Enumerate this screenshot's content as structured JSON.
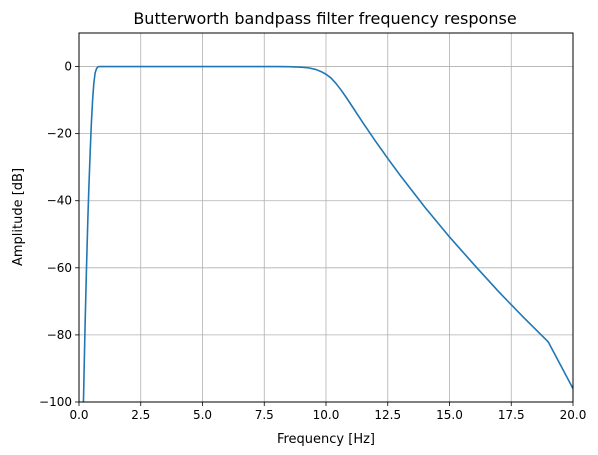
{
  "chart_data": {
    "type": "line",
    "title": "Butterworth bandpass filter frequency response",
    "xlabel": "Frequency [Hz]",
    "ylabel": "Amplitude [dB]",
    "xlim": [
      0,
      20
    ],
    "ylim": [
      -100,
      10
    ],
    "x_ticks": [
      0,
      2.5,
      5,
      7.5,
      10,
      12.5,
      15,
      17.5,
      20
    ],
    "x_tick_labels": [
      "0.0",
      "2.5",
      "5.0",
      "7.5",
      "10.0",
      "12.5",
      "15.0",
      "17.5",
      "20.0"
    ],
    "y_ticks": [
      0,
      -20,
      -40,
      -60,
      -80,
      -100
    ],
    "y_tick_labels": [
      "0",
      "−20",
      "−40",
      "−60",
      "−80",
      "−100"
    ],
    "grid": true,
    "series": [
      {
        "color": "#1f77b4",
        "x": [
          0.18,
          0.2,
          0.22,
          0.25,
          0.28,
          0.3,
          0.33,
          0.36,
          0.4,
          0.45,
          0.5,
          0.55,
          0.6,
          0.65,
          0.7,
          0.75,
          0.8,
          0.85,
          0.9,
          1.0,
          2.0,
          4.0,
          6.0,
          8.0,
          8.5,
          9.0,
          9.3,
          9.6,
          9.8,
          10.0,
          10.2,
          10.4,
          10.6,
          10.8,
          11.0,
          11.5,
          12.0,
          12.5,
          13.0,
          14.0,
          15.0,
          16.0,
          17.0,
          18.0,
          19.0,
          20.0
        ],
        "y": [
          -100,
          -93,
          -86,
          -76,
          -67,
          -61,
          -53,
          -45,
          -36,
          -26,
          -17,
          -10,
          -5,
          -2,
          -0.8,
          -0.2,
          0,
          0,
          0,
          0,
          0,
          0,
          0,
          0,
          -0.05,
          -0.2,
          -0.4,
          -0.9,
          -1.5,
          -2.3,
          -3.4,
          -5,
          -6.9,
          -9,
          -11.2,
          -16.8,
          -22.2,
          -27.4,
          -32.4,
          -41.9,
          -50.8,
          -59.1,
          -67.2,
          -74.8,
          -82.1,
          -96
        ]
      }
    ]
  }
}
